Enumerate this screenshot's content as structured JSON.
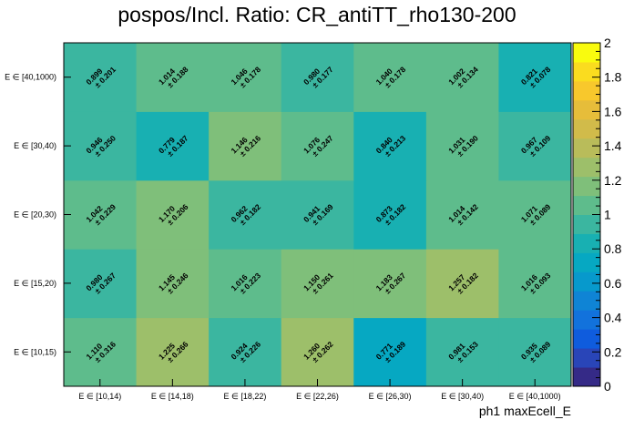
{
  "title": "pospos/Incl. Ratio: CR_antiTT_rho130-200",
  "chart_data": {
    "type": "heatmap",
    "title": "pospos/Incl. Ratio: CR_antiTT_rho130-200",
    "xlabel": "ph1 maxEcell_E",
    "ylabel": "",
    "x_categories": [
      "E ∈ [10,14)",
      "E ∈ [14,18)",
      "E ∈ [18,22)",
      "E ∈ [22,26)",
      "E ∈ [26,30)",
      "E ∈ [30,40)",
      "E ∈ [40,1000)"
    ],
    "y_categories": [
      "E ∈ [10,15)",
      "E ∈ [15,20)",
      "E ∈ [20,30)",
      "E ∈ [30,40)",
      "E ∈ [40,1000)"
    ],
    "values": [
      [
        "1.110",
        "1.225",
        "0.924",
        "1.260",
        "0.771",
        "0.981",
        "0.935"
      ],
      [
        "0.980",
        "1.145",
        "1.016",
        "1.150",
        "1.183",
        "1.257",
        "1.016"
      ],
      [
        "1.042",
        "1.170",
        "0.962",
        "0.941",
        "0.873",
        "1.014",
        "1.071"
      ],
      [
        "0.946",
        "0.779",
        "1.146",
        "1.076",
        "0.840",
        "1.031",
        "0.967"
      ],
      [
        "0.899",
        "1.014",
        "1.046",
        "0.980",
        "1.040",
        "1.002",
        "0.821"
      ]
    ],
    "errors": [
      [
        "± 0.316",
        "± 0.266",
        "± 0.226",
        "± 0.262",
        "± 0.189",
        "± 0.153",
        "± 0.089"
      ],
      [
        "± 0.267",
        "± 0.246",
        "± 0.223",
        "± 0.261",
        "± 0.267",
        "± 0.182",
        "± 0.093"
      ],
      [
        "± 0.229",
        "± 0.206",
        "± 0.182",
        "± 0.169",
        "± 0.182",
        "± 0.142",
        "± 0.089"
      ],
      [
        "± 0.250",
        "± 0.187",
        "± 0.216",
        "± 0.247",
        "± 0.213",
        "± 0.190",
        "± 0.109"
      ],
      [
        "± 0.201",
        "± 0.188",
        "± 0.178",
        "± 0.177",
        "± 0.178",
        "± 0.134",
        "± 0.078"
      ]
    ],
    "zlim": [
      0,
      2
    ],
    "z_ticks": [
      "0",
      "0.2",
      "0.4",
      "0.6",
      "0.8",
      "1",
      "1.2",
      "1.4",
      "1.6",
      "1.8",
      "2"
    ],
    "palette": [
      "#352a87",
      "#2945b8",
      "#0f5cdd",
      "#1272dc",
      "#0f84d5",
      "#0799cc",
      "#06a8c2",
      "#18b0b2",
      "#3bb6a0",
      "#5ebc8c",
      "#7fbf7a",
      "#9dbf6a",
      "#b9bc5a",
      "#d1bb4a",
      "#e6bd3a",
      "#f8c82c",
      "#fadc1f",
      "#f9fb0e"
    ]
  }
}
